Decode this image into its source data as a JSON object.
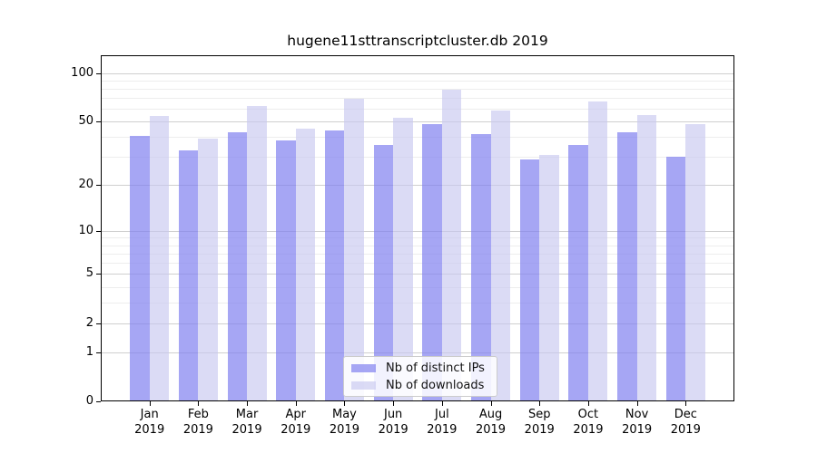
{
  "figure_title": "hugene11sttranscriptcluster.db 2019",
  "chart_data": {
    "type": "bar",
    "title": "hugene11sttranscriptcluster.db 2019",
    "months": [
      "Jan",
      "Feb",
      "Mar",
      "Apr",
      "May",
      "Jun",
      "Jul",
      "Aug",
      "Sep",
      "Oct",
      "Nov",
      "Dec"
    ],
    "year": "2019",
    "series": [
      {
        "name": "Nb of distinct IPs",
        "color": "rgba(128,128,240,0.70)",
        "values": [
          41,
          33,
          43,
          38,
          44,
          36,
          48,
          42,
          29,
          36,
          43,
          30
        ]
      },
      {
        "name": "Nb of downloads",
        "color": "rgba(200,200,240,0.65)",
        "values": [
          54,
          39,
          63,
          45,
          69,
          53,
          79,
          59,
          31,
          67,
          55,
          48
        ]
      }
    ],
    "xlabel": "",
    "ylabel": "",
    "y_scale": "log1p",
    "ylim": [
      0,
      130
    ],
    "y_ticks": [
      0,
      1,
      2,
      5,
      10,
      20,
      50,
      100
    ],
    "y_minor_gridlines": [
      3,
      4,
      6,
      7,
      8,
      9,
      30,
      40,
      60,
      70,
      80,
      90
    ],
    "grid": true,
    "legend_position": "bottom-center",
    "colors": {
      "major_grid": "#cfcfcf",
      "minor_grid": "#ededed",
      "spine": "#000000",
      "background": "#ffffff"
    }
  }
}
